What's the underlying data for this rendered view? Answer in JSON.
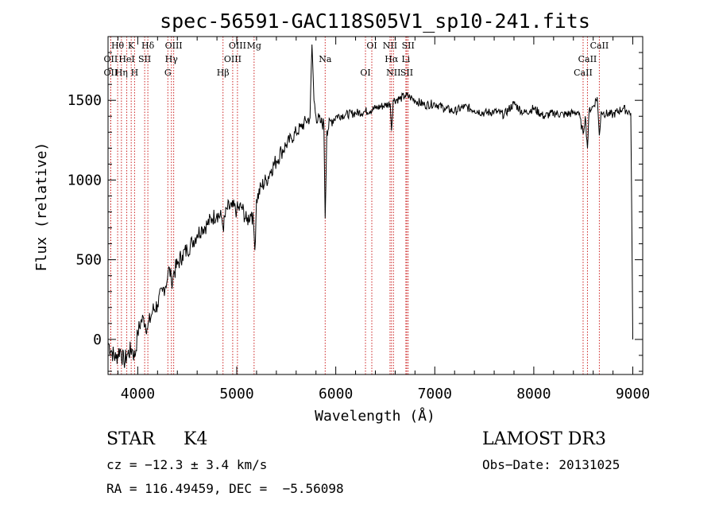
{
  "chart_data": {
    "type": "line",
    "title": "spec-56591-GAC118S05V1_sp10-241.fits",
    "xlabel": "Wavelength (Å)",
    "ylabel": "Flux (relative)",
    "xlim": [
      3700,
      9100
    ],
    "ylim": [
      -220,
      1900
    ],
    "x_ticks": [
      4000,
      5000,
      6000,
      7000,
      8000,
      9000
    ],
    "x_tick_labels": [
      "4000",
      "5000",
      "6000",
      "7000",
      "8000",
      "9000"
    ],
    "y_ticks": [
      0,
      500,
      1000,
      1500
    ],
    "y_tick_labels": [
      "0",
      "500",
      "1000",
      "1500"
    ],
    "grid": false,
    "line_color": "#000000",
    "marker_color": "#cc2222",
    "spectrum": {
      "name": "flux",
      "x": [
        3700,
        3740,
        3780,
        3820,
        3860,
        3900,
        3940,
        3970,
        4000,
        4030,
        4060,
        4100,
        4150,
        4200,
        4250,
        4300,
        4320,
        4340,
        4360,
        4400,
        4450,
        4500,
        4550,
        4600,
        4650,
        4700,
        4750,
        4800,
        4850,
        4861,
        4900,
        4950,
        5000,
        5050,
        5100,
        5150,
        5170,
        5183,
        5200,
        5250,
        5300,
        5350,
        5400,
        5450,
        5500,
        5550,
        5600,
        5650,
        5700,
        5740,
        5760,
        5780,
        5800,
        5850,
        5880,
        5893,
        5910,
        5950,
        6000,
        6100,
        6200,
        6300,
        6400,
        6500,
        6550,
        6563,
        6580,
        6650,
        6700,
        6750,
        6800,
        6900,
        7000,
        7100,
        7200,
        7300,
        7400,
        7500,
        7600,
        7700,
        7800,
        7900,
        8000,
        8100,
        8200,
        8300,
        8400,
        8450,
        8498,
        8520,
        8542,
        8560,
        8600,
        8640,
        8662,
        8680,
        8700,
        8800,
        8900,
        8980,
        9000
      ],
      "y": [
        -20,
        -80,
        -120,
        -60,
        -140,
        -90,
        -60,
        -110,
        40,
        110,
        130,
        70,
        180,
        220,
        300,
        380,
        450,
        360,
        410,
        470,
        530,
        560,
        610,
        660,
        700,
        720,
        760,
        790,
        760,
        700,
        820,
        830,
        810,
        830,
        740,
        800,
        720,
        560,
        880,
        960,
        1000,
        1070,
        1120,
        1180,
        1220,
        1260,
        1300,
        1330,
        1370,
        1390,
        1850,
        1500,
        1400,
        1360,
        1350,
        760,
        1310,
        1370,
        1400,
        1410,
        1420,
        1430,
        1450,
        1470,
        1480,
        1310,
        1500,
        1510,
        1530,
        1520,
        1500,
        1470,
        1480,
        1450,
        1430,
        1460,
        1440,
        1420,
        1430,
        1410,
        1480,
        1420,
        1450,
        1400,
        1420,
        1410,
        1420,
        1430,
        1290,
        1400,
        1200,
        1440,
        1460,
        1520,
        1280,
        1430,
        1420,
        1410,
        1450,
        1420,
        0
      ]
    },
    "lines": [
      {
        "label": "Hθ",
        "x": 3797
      },
      {
        "label": "OII",
        "x": 3727
      },
      {
        "label": "OII",
        "x": 3727
      },
      {
        "label": "K",
        "x": 3934
      },
      {
        "label": "HeI",
        "x": 3889
      },
      {
        "label": "Hη",
        "x": 3835
      },
      {
        "label": "Hδ",
        "x": 4102
      },
      {
        "label": "SII",
        "x": 4070
      },
      {
        "label": "H",
        "x": 3968
      },
      {
        "label": "OIII",
        "x": 4363
      },
      {
        "label": "Hγ",
        "x": 4340
      },
      {
        "label": "G",
        "x": 4304
      },
      {
        "label": "OIII",
        "x": 5007
      },
      {
        "label": "OIII",
        "x": 4959
      },
      {
        "label": "Hβ",
        "x": 4861
      },
      {
        "label": "Mg",
        "x": 5175
      },
      {
        "label": "Na",
        "x": 5893
      },
      {
        "label": "OI",
        "x": 6300
      },
      {
        "label": "OI",
        "x": 6364
      },
      {
        "label": "Hα",
        "x": 6563
      },
      {
        "label": "SII",
        "x": 6717
      },
      {
        "label": "NII",
        "x": 6548
      },
      {
        "label": "Li",
        "x": 6708
      },
      {
        "label": "NII",
        "x": 6583
      },
      {
        "label": "SII",
        "x": 6731
      },
      {
        "label": "CaII",
        "x": 8542
      },
      {
        "label": "CaII",
        "x": 8498
      },
      {
        "label": "CaII",
        "x": 8662
      }
    ]
  },
  "info": {
    "class_label": "STAR",
    "subclass": "K4",
    "cz_label": "cz = ",
    "cz_value": "−12.3",
    "cz_pm": "±",
    "cz_err": "3.4",
    "cz_unit": "km/s",
    "ra_label": "RA =",
    "ra_value": "116.49459,",
    "dec_label": "DEC =",
    "dec_value": "−5.56098",
    "survey": "LAMOST DR3",
    "obs_date_label": "Obs−Date:",
    "obs_date_value": "20131025"
  }
}
